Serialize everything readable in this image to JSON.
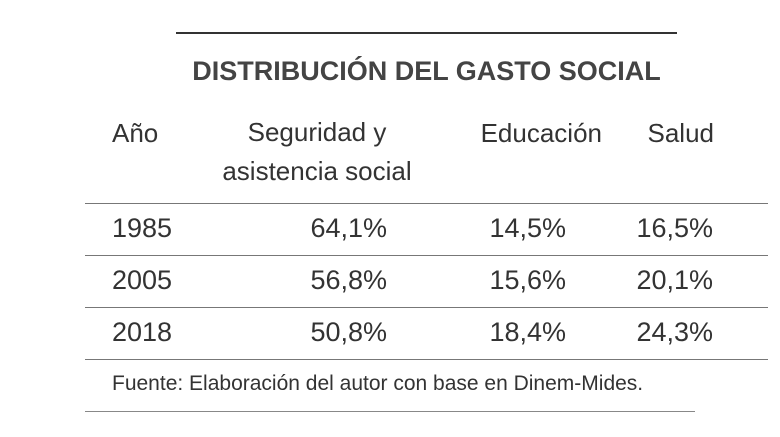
{
  "title": "DISTRIBUCIÓN DEL GASTO SOCIAL",
  "table": {
    "columns": [
      "Año",
      "Seguridad y asistencia social",
      "Educación",
      "Salud"
    ],
    "rows": [
      [
        "1985",
        "64,1%",
        "14,5%",
        "16,5%"
      ],
      [
        "2005",
        "56,8%",
        "15,6%",
        "20,1%"
      ],
      [
        "2018",
        "50,8%",
        "18,4%",
        "24,3%"
      ]
    ]
  },
  "source": "Fuente: Elaboración del autor con base en Dinem-Mides."
}
